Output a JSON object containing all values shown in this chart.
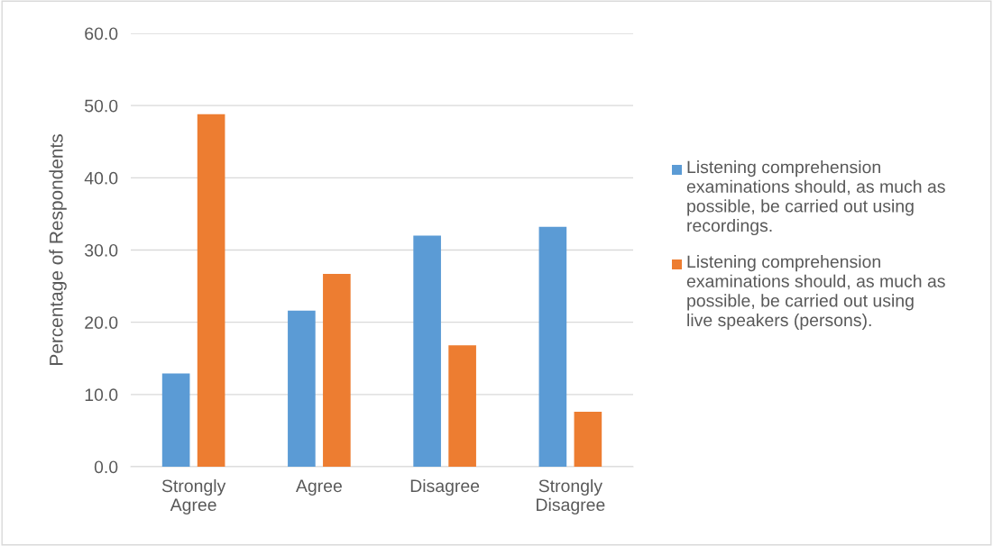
{
  "chart_data": {
    "type": "bar",
    "ylabel": "Percentage of Respondents",
    "categories": [
      "Strongly\nAgree",
      "Agree",
      "Disagree",
      "Strongly\nDisagree"
    ],
    "series": [
      {
        "name": "Listening comprehension examinations should, as much as possible, be carried out using recordings.",
        "color": "#5b9bd5",
        "values": [
          12.9,
          21.6,
          32.0,
          33.2
        ]
      },
      {
        "name": "Listening comprehension examinations should, as much as possible, be carried out using live speakers (persons).",
        "color": "#ed7d31",
        "values": [
          48.8,
          26.7,
          16.8,
          7.6
        ]
      }
    ],
    "ylim": [
      0,
      60
    ],
    "yticks": [
      {
        "value": 0,
        "label": "0.0"
      },
      {
        "value": 10,
        "label": "10.0"
      },
      {
        "value": 20,
        "label": "20.0"
      },
      {
        "value": 30,
        "label": "30.0"
      },
      {
        "value": 40,
        "label": "40.0"
      },
      {
        "value": 50,
        "label": "50.0"
      },
      {
        "value": 60,
        "label": "60.0"
      }
    ],
    "grid": "y",
    "legend": "right"
  }
}
